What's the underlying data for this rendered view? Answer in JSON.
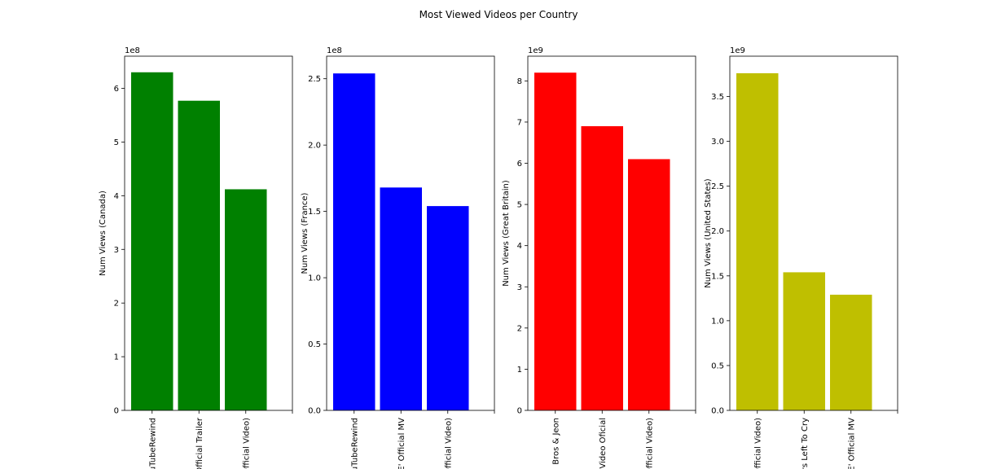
{
  "figure": {
    "title": "Most Viewed Videos per Country"
  },
  "chart_data": [
    {
      "type": "bar",
      "ylabel": "Num Views (Canada)",
      "scale_label": "1e8",
      "scale": 100000000,
      "ylim": [
        0,
        6.6
      ],
      "yticks": [
        0,
        1,
        2,
        3,
        4,
        5,
        6
      ],
      "ytick_labels": [
        "0",
        "1",
        "2",
        "3",
        "4",
        "5",
        "6"
      ],
      "color": "#008000",
      "categories": [
        "YouTubeRewind",
        "Official Trailer",
        "(Official Video)"
      ],
      "values": [
        6.3,
        5.77,
        4.12
      ]
    },
    {
      "type": "bar",
      "ylabel": "Num Views (France)",
      "scale_label": "1e8",
      "scale": 100000000,
      "ylim": [
        0,
        2.67
      ],
      "yticks": [
        0,
        0.5,
        1.0,
        1.5,
        2.0,
        2.5
      ],
      "ytick_labels": [
        "0.0",
        "0.5",
        "1.0",
        "1.5",
        "2.0",
        "2.5"
      ],
      "color": "#0000ff",
      "categories": [
        "YouTubeRewind",
        "E' Official MV",
        "(Official Video)"
      ],
      "values": [
        2.54,
        1.68,
        1.54
      ]
    },
    {
      "type": "bar",
      "ylabel": "Num Views (Great Britain)",
      "scale_label": "1e9",
      "scale": 1000000000,
      "ylim": [
        0,
        8.6
      ],
      "yticks": [
        0,
        1,
        2,
        3,
        4,
        5,
        6,
        7,
        8
      ],
      "ytick_labels": [
        "0",
        "1",
        "2",
        "3",
        "4",
        "5",
        "6",
        "7",
        "8"
      ],
      "color": "#ff0000",
      "categories": [
        "Bros & Jeon",
        "Video Oficial",
        "(Official Video)"
      ],
      "values": [
        8.2,
        6.9,
        6.1
      ]
    },
    {
      "type": "bar",
      "ylabel": "Num Views (United States)",
      "scale_label": "1e9",
      "scale": 1000000000,
      "ylim": [
        0,
        3.95
      ],
      "yticks": [
        0,
        0.5,
        1.0,
        1.5,
        2.0,
        2.5,
        3.0,
        3.5
      ],
      "ytick_labels": [
        "0.0",
        "0.5",
        "1.0",
        "1.5",
        "2.0",
        "2.5",
        "3.0",
        "3.5"
      ],
      "color": "#bfbf00",
      "categories": [
        "(Official Video)",
        "rs Left To Cry",
        "E' Official MV"
      ],
      "values": [
        3.76,
        1.54,
        1.29
      ]
    }
  ]
}
